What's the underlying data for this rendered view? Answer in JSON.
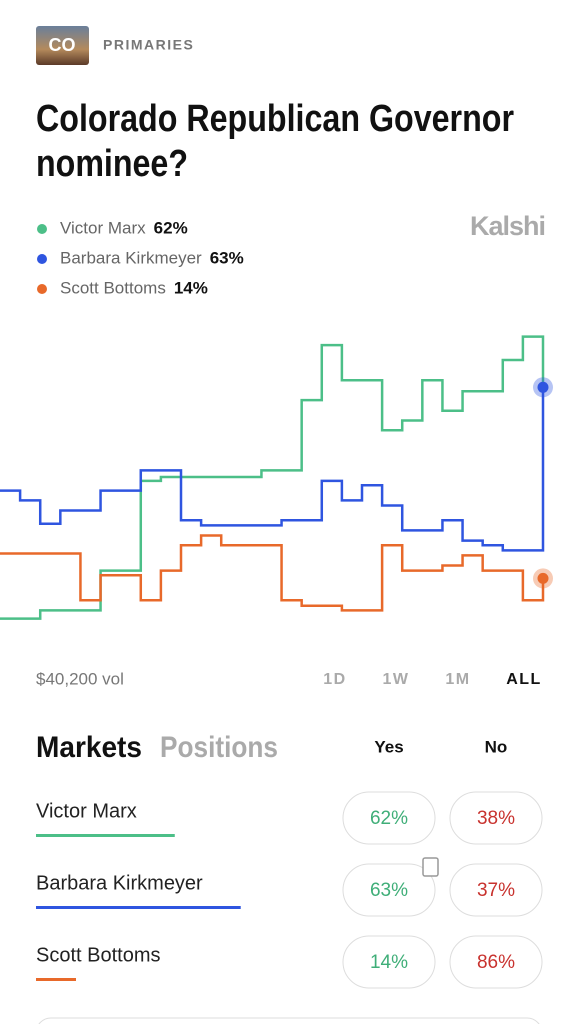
{
  "header": {
    "badge": "CO",
    "section": "PRIMARIES",
    "title": [
      "Colorado Republican Governor",
      "nominee?"
    ],
    "brand": "Kalshi"
  },
  "legend_values": [
    "62%",
    "63%",
    "14%"
  ],
  "chart_data": {
    "type": "line",
    "ylim": [
      0,
      80
    ],
    "series": [
      {
        "name": "Victor Marx",
        "color": "#4cbf88",
        "values": [
          3.7,
          3.7,
          5.8,
          5.8,
          5.8,
          16,
          16,
          39,
          40,
          40,
          40,
          40,
          40,
          41.7,
          41.7,
          59.7,
          73.8,
          64.8,
          64.8,
          52,
          54.5,
          64.8,
          57,
          62,
          62,
          70,
          76,
          62
        ]
      },
      {
        "name": "Barbara Kirkmeyer",
        "color": "#2f55e0",
        "values": [
          36.5,
          34,
          28,
          31.4,
          31.4,
          36.5,
          36.5,
          41.7,
          41.7,
          28.9,
          27.6,
          27.6,
          27.6,
          27.6,
          28.9,
          28.9,
          39,
          34,
          37.9,
          32.7,
          26.3,
          26.3,
          28.9,
          23.7,
          22.5,
          21.2,
          21.2,
          63
        ]
      },
      {
        "name": "Scott Bottoms",
        "color": "#e8692a",
        "values": [
          20.4,
          20.4,
          20.4,
          20.4,
          8.4,
          14.8,
          14.8,
          8.4,
          16,
          22.5,
          25,
          22.5,
          22.5,
          22.5,
          8.4,
          7,
          7,
          5.8,
          5.8,
          22.5,
          16,
          16,
          17.3,
          19.9,
          16,
          16,
          8.4,
          14
        ]
      }
    ]
  },
  "volume": "$40,200 vol",
  "ranges": [
    "1D",
    "1W",
    "1M",
    "ALL"
  ],
  "tabs": [
    "Markets",
    "Positions"
  ],
  "columns": [
    "Yes",
    "No"
  ],
  "markets": [
    {
      "name": "Victor Marx",
      "yes": "62%",
      "no": "38%"
    },
    {
      "name": "Barbara Kirkmeyer",
      "yes": "63%",
      "no": "37%"
    },
    {
      "name": "Scott Bottoms",
      "yes": "14%",
      "no": "86%"
    }
  ]
}
